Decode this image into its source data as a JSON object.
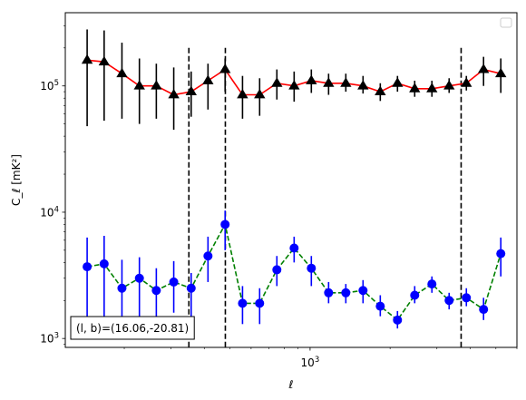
{
  "chart_data": {
    "type": "scatter",
    "xlabel": "ℓ",
    "ylabel": "C_ℓ  [mK²]",
    "x_scale": "log",
    "y_scale": "log",
    "xlim": [
      120,
      6000
    ],
    "ylim": [
      850,
      380000
    ],
    "x_tick_labels": [
      {
        "value": 1000,
        "base": "10",
        "exp": "3"
      }
    ],
    "y_tick_labels": [
      {
        "value": 1000,
        "base": "10",
        "exp": "3"
      },
      {
        "value": 10000,
        "base": "10",
        "exp": "4"
      },
      {
        "value": 100000,
        "base": "10",
        "exp": "5"
      }
    ],
    "vlines": [
      350,
      480,
      3700
    ],
    "legend": "upper right (empty)",
    "annotation": {
      "text": "(l, b)=(16.06,-20.81)",
      "placement": "lower left"
    },
    "series": [
      {
        "marker": "triangle",
        "line_color": "#ff0000",
        "marker_color": "#000000",
        "errorbar_color": "#000000",
        "line_style": "solid",
        "x": [
          145,
          168,
          196,
          228,
          264,
          307,
          357,
          413,
          479,
          557,
          646,
          750,
          871,
          1011,
          1174,
          1363,
          1582,
          1837,
          2132,
          2475,
          2873,
          3335,
          3872,
          4494,
          5218
        ],
        "y": [
          160000,
          155000,
          125000,
          100000,
          100000,
          85000,
          90000,
          110000,
          135000,
          85000,
          85000,
          105000,
          100000,
          110000,
          105000,
          105000,
          100000,
          90000,
          105000,
          95000,
          95000,
          100000,
          105000,
          135000,
          125000
        ],
        "y_err_low": [
          48000,
          53000,
          55000,
          50000,
          55000,
          45000,
          57000,
          65000,
          90000,
          55000,
          58000,
          78000,
          75000,
          88000,
          85000,
          90000,
          87000,
          76000,
          90000,
          82000,
          82000,
          88000,
          92000,
          100000,
          88000
        ],
        "y_err_high": [
          280000,
          275000,
          220000,
          165000,
          150000,
          140000,
          130000,
          150000,
          165000,
          120000,
          115000,
          135000,
          130000,
          135000,
          125000,
          125000,
          120000,
          105000,
          120000,
          110000,
          110000,
          115000,
          120000,
          170000,
          165000
        ]
      },
      {
        "marker": "circle",
        "line_color": "#008000",
        "marker_color": "#0000ff",
        "errorbar_color": "#0000ff",
        "line_style": "dashed",
        "x": [
          145,
          168,
          196,
          228,
          264,
          307,
          357,
          413,
          479,
          557,
          646,
          750,
          871,
          1011,
          1174,
          1363,
          1582,
          1837,
          2132,
          2475,
          2873,
          3335,
          3872,
          4494,
          5218
        ],
        "y": [
          3700,
          3900,
          2500,
          3000,
          2400,
          2800,
          2500,
          4500,
          8000,
          1900,
          1900,
          3500,
          5200,
          3600,
          2300,
          2300,
          2400,
          1800,
          1400,
          2200,
          2700,
          2000,
          2100,
          1700,
          4700
        ],
        "y_err_low": [
          1500,
          1500,
          1200,
          1400,
          1400,
          1600,
          1400,
          2800,
          5000,
          1300,
          1300,
          2600,
          4000,
          2600,
          1900,
          1900,
          1900,
          1500,
          1200,
          1900,
          2300,
          1700,
          1800,
          1400,
          3100
        ],
        "y_err_high": [
          6300,
          6500,
          4200,
          4400,
          3600,
          4100,
          3300,
          6400,
          10300,
          2600,
          2500,
          4500,
          6400,
          4500,
          2800,
          2700,
          2900,
          2200,
          1650,
          2600,
          3100,
          2300,
          2500,
          2100,
          6300
        ]
      }
    ]
  }
}
